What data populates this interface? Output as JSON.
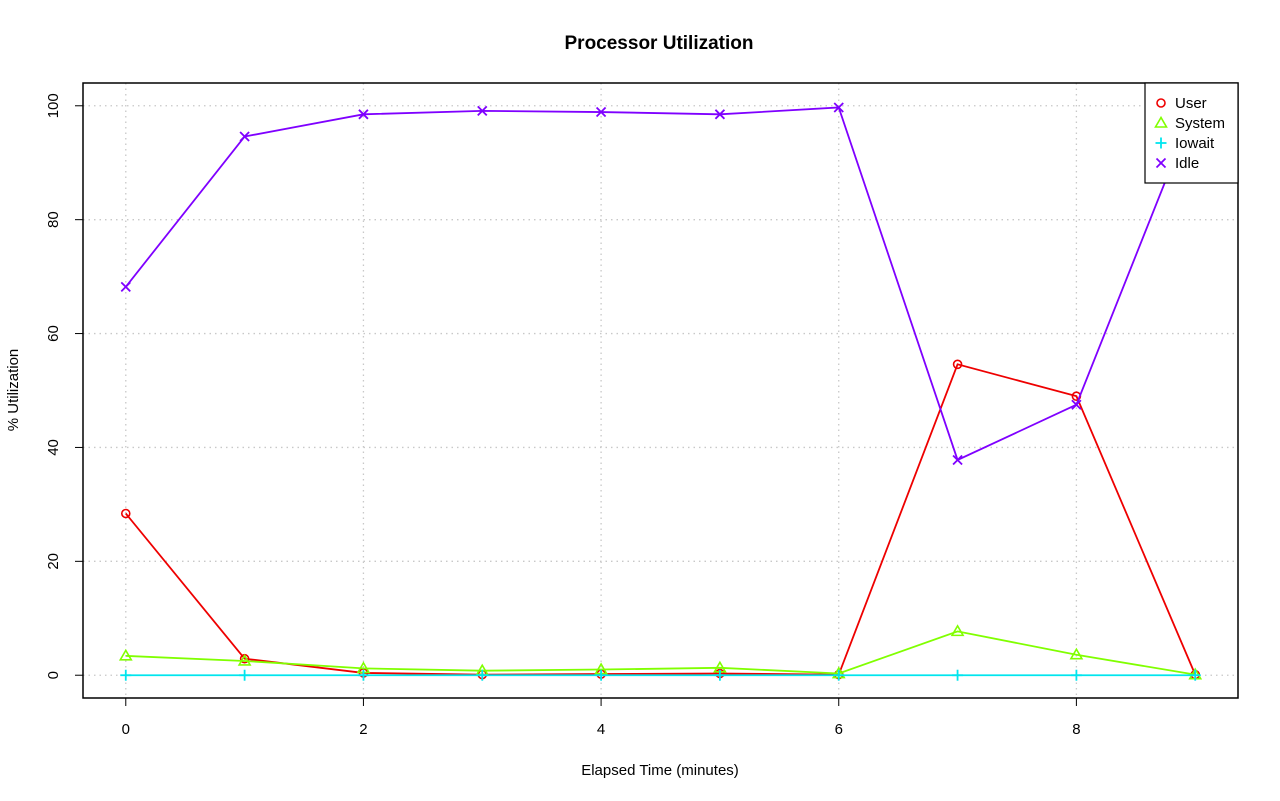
{
  "chart_data": {
    "type": "line",
    "title": "Processor Utilization",
    "xlabel": "Elapsed Time (minutes)",
    "ylabel": "% Utilization",
    "x": [
      0,
      1,
      2,
      3,
      4,
      5,
      6,
      7,
      8,
      9
    ],
    "xlim": [
      -0.36,
      9.36
    ],
    "ylim": [
      -4,
      104
    ],
    "xticks": [
      0,
      2,
      4,
      6,
      8
    ],
    "yticks": [
      0,
      20,
      40,
      60,
      80,
      100
    ],
    "grid": true,
    "legend_position": "top-right",
    "series": [
      {
        "name": "User",
        "color": "#ee0000",
        "marker": "circle",
        "values": [
          28.4,
          2.9,
          0.4,
          0.1,
          0.2,
          0.3,
          0.1,
          54.6,
          49.0,
          0.1
        ]
      },
      {
        "name": "System",
        "color": "#80ff00",
        "marker": "triangle",
        "values": [
          3.4,
          2.5,
          1.2,
          0.8,
          1.0,
          1.3,
          0.3,
          7.7,
          3.6,
          0.1
        ]
      },
      {
        "name": "Iowait",
        "color": "#00e5ee",
        "marker": "plus",
        "values": [
          0,
          0,
          0,
          0,
          0,
          0,
          0,
          0,
          0,
          0
        ]
      },
      {
        "name": "Idle",
        "color": "#7f00ff",
        "marker": "cross",
        "values": [
          68.2,
          94.6,
          98.5,
          99.1,
          98.9,
          98.5,
          99.7,
          37.8,
          47.5,
          99.9
        ]
      }
    ]
  }
}
